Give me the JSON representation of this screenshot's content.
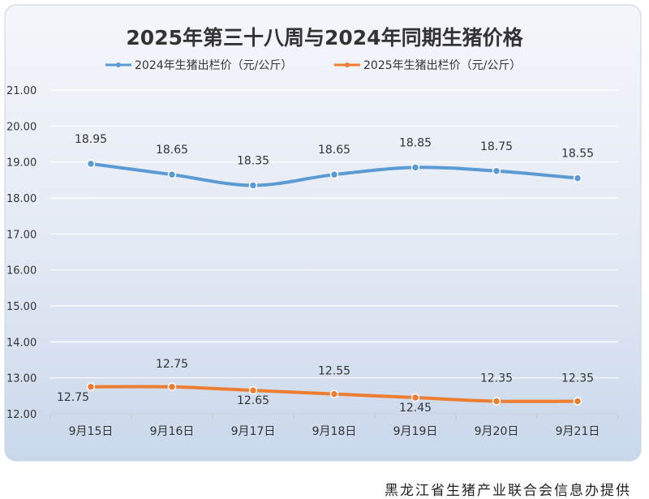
{
  "chart_data": {
    "type": "line",
    "title": "2025年第三十八周与2024年同期生猪价格",
    "categories": [
      "9月15日",
      "9月16日",
      "9月17日",
      "9月18日",
      "9月19日",
      "9月20日",
      "9月21日"
    ],
    "ylim": [
      12.0,
      21.0
    ],
    "yticks": [
      "12.00",
      "13.00",
      "14.00",
      "15.00",
      "16.00",
      "17.00",
      "18.00",
      "19.00",
      "20.00",
      "21.00"
    ],
    "series": [
      {
        "name": "2024年生猪出栏价（元/公斤）",
        "color": "#5b9bd5",
        "values": [
          18.95,
          18.65,
          18.35,
          18.65,
          18.85,
          18.75,
          18.55
        ],
        "labels": [
          "18.95",
          "18.65",
          "18.35",
          "18.65",
          "18.85",
          "18.75",
          "18.55"
        ]
      },
      {
        "name": "2025年生猪出栏价（元/公斤）",
        "color": "#ed7d31",
        "values": [
          12.75,
          12.75,
          12.65,
          12.55,
          12.45,
          12.35,
          12.35
        ],
        "labels": [
          "12.75",
          "12.75",
          "12.65",
          "12.55",
          "12.45",
          "12.35",
          "12.35"
        ]
      }
    ],
    "grid": true,
    "legend": "top-center"
  },
  "footer": {
    "credit": "黑龙江省生猪产业联合会信息办提供"
  }
}
